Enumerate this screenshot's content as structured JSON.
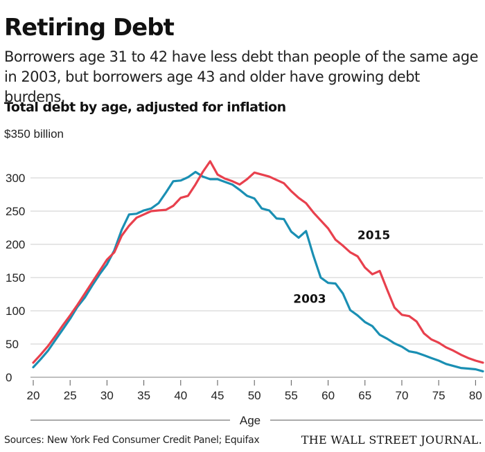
{
  "header": {
    "title": "Retiring Debt",
    "subtitle": "Borrowers age 31 to 42 have less debt than people of the same age in 2003, but borrowers age 43 and older have growing debt burdens."
  },
  "footer": {
    "source": "Sources: New York Fed Consumer Credit Panel; Equifax",
    "publisher": "THE WALL STREET JOURNAL."
  },
  "chart_data": {
    "type": "line",
    "title": "Total debt by age, adjusted for inflation",
    "xlabel": "Age",
    "ylabel": "",
    "y_unit_label": "$350 billion",
    "xlim": [
      20,
      81
    ],
    "ylim": [
      0,
      350
    ],
    "x_ticks": [
      20,
      25,
      30,
      35,
      40,
      45,
      50,
      55,
      60,
      65,
      70,
      75,
      80
    ],
    "x_tick_labels": [
      "20",
      "25",
      "30",
      "35",
      "40",
      "45",
      "50",
      "55",
      "60",
      "65",
      "70",
      "75",
      "80"
    ],
    "y_ticks": [
      0,
      50,
      100,
      150,
      200,
      250,
      300
    ],
    "y_tick_labels": [
      "0",
      "50",
      "100",
      "150",
      "200",
      "250",
      "300"
    ],
    "grid": "horizontal",
    "series": [
      {
        "name": "2003",
        "color": "#1a8fb3",
        "x": [
          20,
          21,
          22,
          23,
          24,
          25,
          26,
          27,
          28,
          29,
          30,
          31,
          32,
          33,
          34,
          35,
          36,
          37,
          38,
          39,
          40,
          41,
          42,
          43,
          44,
          45,
          46,
          47,
          48,
          49,
          50,
          51,
          52,
          53,
          54,
          55,
          56,
          57,
          58,
          59,
          60,
          61,
          62,
          63,
          64,
          65,
          66,
          67,
          68,
          69,
          70,
          71,
          72,
          73,
          74,
          75,
          76,
          77,
          78,
          79,
          80,
          81
        ],
        "values": [
          15,
          27,
          40,
          56,
          72,
          88,
          106,
          120,
          138,
          155,
          170,
          191,
          222,
          245,
          246,
          251,
          254,
          262,
          278,
          295,
          296,
          301,
          309,
          302,
          298,
          298,
          294,
          290,
          282,
          273,
          269,
          254,
          251,
          239,
          238,
          219,
          210,
          220,
          183,
          150,
          142,
          141,
          126,
          101,
          93,
          83,
          77,
          64,
          58,
          51,
          46,
          39,
          37,
          33,
          29,
          25,
          20,
          17,
          14,
          13,
          12,
          9
        ],
        "label": "2003"
      },
      {
        "name": "2015",
        "color": "#e8404d",
        "x": [
          20,
          21,
          22,
          23,
          24,
          25,
          26,
          27,
          28,
          29,
          30,
          31,
          32,
          33,
          34,
          35,
          36,
          37,
          38,
          39,
          40,
          41,
          42,
          43,
          44,
          45,
          46,
          47,
          48,
          49,
          50,
          51,
          52,
          53,
          54,
          55,
          56,
          57,
          58,
          59,
          60,
          61,
          62,
          63,
          64,
          65,
          66,
          67,
          68,
          69,
          70,
          71,
          72,
          73,
          74,
          75,
          76,
          77,
          78,
          79,
          80,
          81
        ],
        "values": [
          22,
          34,
          47,
          62,
          78,
          93,
          109,
          126,
          143,
          160,
          177,
          188,
          213,
          228,
          240,
          245,
          250,
          251,
          252,
          258,
          270,
          273,
          290,
          309,
          325,
          305,
          299,
          295,
          290,
          298,
          308,
          305,
          302,
          297,
          292,
          280,
          270,
          262,
          248,
          236,
          224,
          207,
          198,
          188,
          182,
          165,
          155,
          160,
          132,
          105,
          94,
          92,
          84,
          66,
          57,
          52,
          45,
          40,
          34,
          29,
          25,
          22
        ],
        "label": "2015"
      }
    ]
  }
}
